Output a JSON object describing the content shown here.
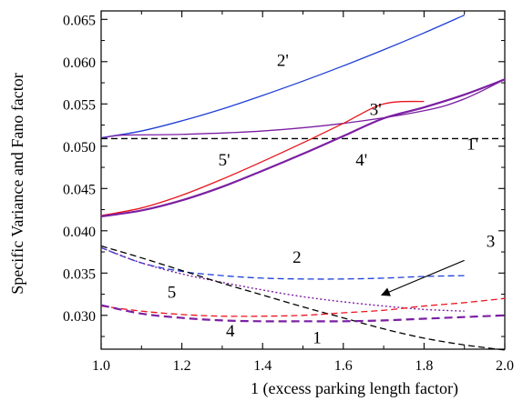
{
  "chart_data": {
    "type": "line",
    "xlabel": "1  (excess parking length factor)",
    "ylabel": "Specific Variance and Fano factor",
    "xlim": [
      1.0,
      2.0
    ],
    "ylim": [
      0.026,
      0.066
    ],
    "xticks": [
      1.0,
      1.2,
      1.4,
      1.6,
      1.8,
      2.0
    ],
    "xtick_labels": [
      "1.0",
      "1.2",
      "1.4",
      "1.6",
      "1.8",
      "2.0"
    ],
    "yticks": [
      0.03,
      0.035,
      0.04,
      0.045,
      0.05,
      0.055,
      0.06,
      0.065
    ],
    "ytick_labels": [
      "0.030",
      "0.035",
      "0.040",
      "0.045",
      "0.050",
      "0.055",
      "0.060",
      "0.065"
    ],
    "grid": false,
    "series": [
      {
        "name": "2'",
        "color": "#1f3fd6",
        "style": "solid",
        "x": [
          1.0,
          1.1,
          1.2,
          1.3,
          1.4,
          1.5,
          1.6,
          1.7,
          1.8,
          1.9
        ],
        "y": [
          0.051,
          0.0518,
          0.053,
          0.0544,
          0.056,
          0.0577,
          0.0595,
          0.0614,
          0.0634,
          0.0655
        ]
      },
      {
        "name": "3'",
        "color": "#7b1fa2",
        "style": "solid",
        "x": [
          1.0,
          1.05,
          1.2,
          1.4,
          1.6,
          1.8,
          1.9,
          2.0
        ],
        "y": [
          0.0509,
          0.0513,
          0.0514,
          0.0518,
          0.0527,
          0.0542,
          0.0556,
          0.0579
        ]
      },
      {
        "name": "1'",
        "color": "#000000",
        "style": "dashed",
        "x": [
          1.0,
          2.0
        ],
        "y": [
          0.0509,
          0.0509
        ]
      },
      {
        "name": "5'",
        "color": "#e8141e",
        "style": "solid",
        "x": [
          1.0,
          1.1,
          1.2,
          1.3,
          1.4,
          1.5,
          1.6,
          1.7,
          1.8
        ],
        "y": [
          0.0418,
          0.0427,
          0.0442,
          0.0461,
          0.0482,
          0.0504,
          0.0527,
          0.055,
          0.0553
        ]
      },
      {
        "name": "4'",
        "color": "#7b1fa2",
        "style": "solid-thick",
        "x": [
          1.0,
          1.1,
          1.2,
          1.3,
          1.4,
          1.5,
          1.6,
          1.7,
          1.8,
          1.9,
          2.0
        ],
        "y": [
          0.0417,
          0.0424,
          0.0436,
          0.0452,
          0.0471,
          0.0491,
          0.0512,
          0.0533,
          0.0546,
          0.0561,
          0.0579
        ]
      },
      {
        "name": "2",
        "color": "#1f3fd6",
        "style": "dashed",
        "x": [
          1.0,
          1.1,
          1.2,
          1.3,
          1.4,
          1.5,
          1.6,
          1.7,
          1.8,
          1.9
        ],
        "y": [
          0.038,
          0.0362,
          0.0352,
          0.0347,
          0.0344,
          0.0343,
          0.0343,
          0.0344,
          0.0346,
          0.0347
        ]
      },
      {
        "name": "3",
        "color": "#7b1fa2",
        "style": "dotted",
        "x": [
          1.0,
          1.1,
          1.2,
          1.3,
          1.4,
          1.5,
          1.6,
          1.7,
          1.8,
          1.9
        ],
        "y": [
          0.038,
          0.0362,
          0.0349,
          0.0339,
          0.033,
          0.0322,
          0.0316,
          0.0311,
          0.0307,
          0.0305
        ]
      },
      {
        "name": "1",
        "color": "#000000",
        "style": "dashed",
        "x": [
          1.0,
          1.1,
          1.2,
          1.3,
          1.4,
          1.5,
          1.6,
          1.7,
          1.8,
          1.9,
          2.0
        ],
        "y": [
          0.0382,
          0.0368,
          0.0353,
          0.0338,
          0.0324,
          0.031,
          0.0297,
          0.0284,
          0.0273,
          0.0265,
          0.0259
        ]
      },
      {
        "name": "5",
        "color": "#e8141e",
        "style": "dashed",
        "x": [
          1.0,
          1.1,
          1.2,
          1.3,
          1.4,
          1.5,
          1.6,
          1.7,
          1.8,
          1.9,
          2.0
        ],
        "y": [
          0.0311,
          0.0305,
          0.0301,
          0.0299,
          0.0299,
          0.03,
          0.0303,
          0.0306,
          0.0311,
          0.0315,
          0.032
        ]
      },
      {
        "name": "4",
        "color": "#7b1fa2",
        "style": "dashed-thick",
        "x": [
          1.0,
          1.1,
          1.2,
          1.3,
          1.4,
          1.5,
          1.6,
          1.7,
          1.8,
          1.9,
          2.0
        ],
        "y": [
          0.0312,
          0.0302,
          0.0297,
          0.0294,
          0.0293,
          0.0293,
          0.0293,
          0.0294,
          0.0296,
          0.0298,
          0.03
        ]
      }
    ],
    "annotations": [
      {
        "text": "2'",
        "x": 1.45,
        "y": 0.0595
      },
      {
        "text": "3'",
        "x": 1.68,
        "y": 0.0537
      },
      {
        "text": "1'",
        "x": 1.92,
        "y": 0.0496
      },
      {
        "text": "5'",
        "x": 1.305,
        "y": 0.0477
      },
      {
        "text": "4'",
        "x": 1.645,
        "y": 0.0477
      },
      {
        "text": "2",
        "x": 1.485,
        "y": 0.0362
      },
      {
        "text": "3",
        "x": 1.965,
        "y": 0.0381
      },
      {
        "text": "5",
        "x": 1.175,
        "y": 0.0321
      },
      {
        "text": "4",
        "x": 1.32,
        "y": 0.0275
      },
      {
        "text": "1",
        "x": 1.535,
        "y": 0.0267
      }
    ],
    "arrow": {
      "from": [
        1.9,
        0.0365
      ],
      "to": [
        1.695,
        0.0324
      ]
    }
  }
}
